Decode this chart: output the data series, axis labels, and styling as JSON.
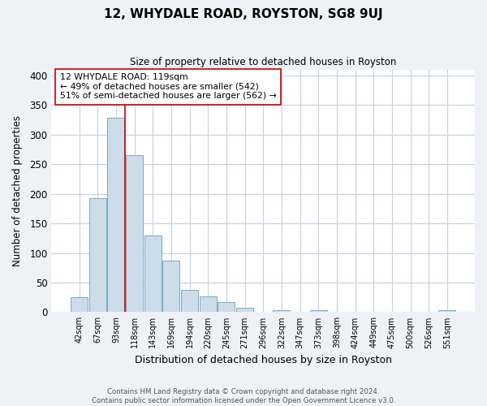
{
  "title": "12, WHYDALE ROAD, ROYSTON, SG8 9UJ",
  "subtitle": "Size of property relative to detached houses in Royston",
  "xlabel": "Distribution of detached houses by size in Royston",
  "ylabel": "Number of detached properties",
  "bar_labels": [
    "42sqm",
    "67sqm",
    "93sqm",
    "118sqm",
    "143sqm",
    "169sqm",
    "194sqm",
    "220sqm",
    "245sqm",
    "271sqm",
    "296sqm",
    "322sqm",
    "347sqm",
    "373sqm",
    "398sqm",
    "424sqm",
    "449sqm",
    "475sqm",
    "500sqm",
    "526sqm",
    "551sqm"
  ],
  "bar_values": [
    25,
    193,
    328,
    265,
    130,
    87,
    37,
    26,
    17,
    8,
    0,
    4,
    0,
    4,
    0,
    0,
    0,
    0,
    0,
    0,
    3
  ],
  "bar_color": "#ccdce8",
  "bar_edgecolor": "#7aaac8",
  "vline_x": 2.5,
  "vline_color": "#cc0000",
  "annotation_text": "12 WHYDALE ROAD: 119sqm\n← 49% of detached houses are smaller (542)\n51% of semi-detached houses are larger (562) →",
  "annotation_box_edgecolor": "#cc0000",
  "annotation_box_facecolor": "#ffffff",
  "ylim": [
    0,
    410
  ],
  "yticks": [
    0,
    50,
    100,
    150,
    200,
    250,
    300,
    350,
    400
  ],
  "footer_line1": "Contains HM Land Registry data © Crown copyright and database right 2024.",
  "footer_line2": "Contains public sector information licensed under the Open Government Licence v3.0.",
  "background_color": "#eef2f6",
  "plot_background_color": "#ffffff",
  "grid_color": "#c8d0dc"
}
